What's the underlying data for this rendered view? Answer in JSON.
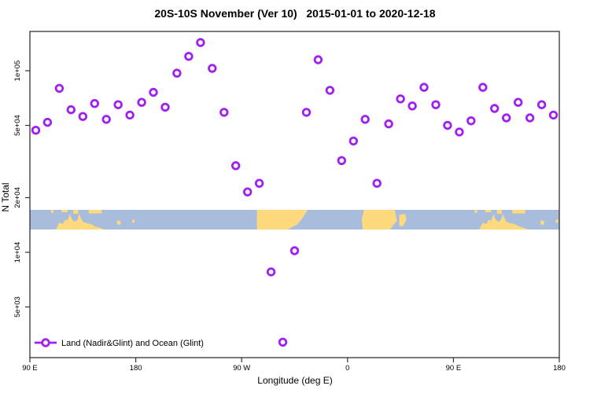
{
  "title": "20S-10S November (Ver 10)   2015-01-01 to 2020-12-18",
  "legend": {
    "label": "Land (Nadir&Glint) and Ocean (Glint)"
  },
  "colors": {
    "marker": "#A020F0",
    "ocean": "#a8bddb",
    "land": "#fed97e",
    "axis": "#333333",
    "text": "#000000"
  },
  "map_band": {
    "description": "world map strip for latitude band 20S-10S",
    "land_segments": [
      {
        "name": "australia",
        "lon_range": [
          112,
          153
        ]
      },
      {
        "name": "new-guinea-indonesia-islands",
        "lon_range": [
          108,
          151
        ]
      },
      {
        "name": "new-caledonia",
        "lon_range": [
          164,
          167
        ]
      },
      {
        "name": "fiji",
        "lon_range": [
          177,
          179
        ]
      },
      {
        "name": "south-america",
        "lon_range": [
          283,
          326
        ]
      },
      {
        "name": "africa",
        "lon_range": [
          372,
          402
        ]
      },
      {
        "name": "madagascar",
        "lon_range": [
          404,
          410
        ]
      },
      {
        "name": "australia-repeat",
        "lon_range": [
          472,
          513
        ]
      },
      {
        "name": "new-guinea-indonesia-islands-repeat",
        "lon_range": [
          468,
          511
        ]
      },
      {
        "name": "new-caledonia-repeat",
        "lon_range": [
          524,
          527
        ]
      },
      {
        "name": "fiji-repeat",
        "lon_range": [
          537,
          539
        ]
      }
    ]
  },
  "chart_data": {
    "type": "scatter",
    "title": "20S-10S November (Ver 10)   2015-01-01 to 2020-12-18",
    "xlabel": "Longitude (deg E)",
    "ylabel": "N Total",
    "y_scale": "log",
    "ylim": [
      2500,
      250000
    ],
    "xlim_deg_east_unwrapped": [
      90,
      540
    ],
    "grid": false,
    "legend_position": "bottom-left inside plot",
    "x_ticks": [
      {
        "lon": 90,
        "label": "90 E"
      },
      {
        "lon": 180,
        "label": "180"
      },
      {
        "lon": 270,
        "label": "90 W"
      },
      {
        "lon": 360,
        "label": "0"
      },
      {
        "lon": 450,
        "label": "90 E"
      },
      {
        "lon": 540,
        "label": "180"
      }
    ],
    "y_ticks": [
      {
        "value": 100000,
        "label": "1e+05"
      },
      {
        "value": 50000,
        "label": "5e+04"
      },
      {
        "value": 20000,
        "label": "2e+04"
      },
      {
        "value": 10000,
        "label": "1e+04"
      },
      {
        "value": 5000,
        "label": "5e+03"
      }
    ],
    "series": [
      {
        "name": "Land (Nadir&Glint) and Ocean (Glint)",
        "marker": "open-circle",
        "color": "#A020F0",
        "x_lon_deg_east_unwrapped": [
          95,
          105,
          115,
          125,
          135,
          145,
          155,
          165,
          175,
          185,
          195,
          205,
          215,
          225,
          235,
          245,
          255,
          265,
          275,
          285,
          295,
          305,
          315,
          325,
          335,
          345,
          355,
          365,
          375,
          385,
          395,
          405,
          415,
          425,
          435,
          445,
          455,
          465,
          475,
          485,
          495,
          505,
          515,
          525,
          535
        ],
        "values": [
          47000,
          52000,
          80000,
          61000,
          56000,
          66000,
          54000,
          65000,
          57000,
          67000,
          76000,
          63000,
          97000,
          120000,
          143000,
          103000,
          59000,
          30000,
          21500,
          24000,
          7800,
          3200,
          10200,
          59000,
          115000,
          78000,
          32000,
          41000,
          54000,
          24000,
          51000,
          70000,
          64000,
          81000,
          65000,
          50000,
          46000,
          53000,
          81000,
          62000,
          55000,
          67000,
          55000,
          65000,
          57000
        ]
      }
    ]
  }
}
